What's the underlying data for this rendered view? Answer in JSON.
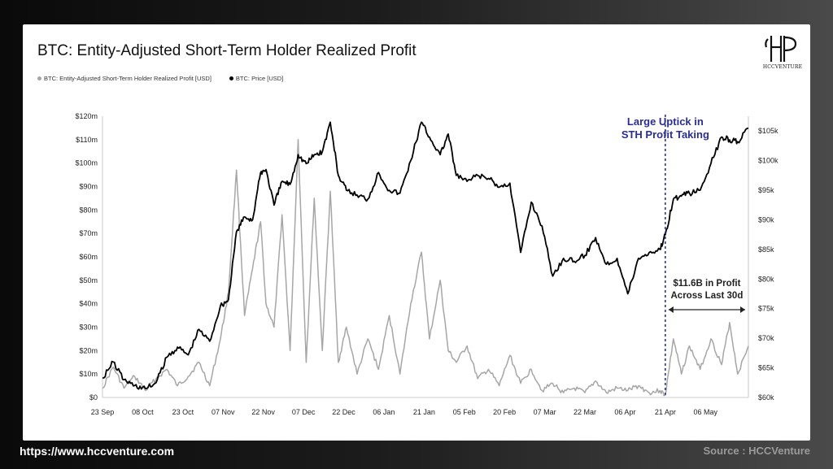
{
  "title": "BTC: Entity-Adjusted Short-Term Holder Realized Profit",
  "logo": {
    "word": "HCCVENTURE"
  },
  "footer": {
    "url": "https://www.hccventure.com",
    "source": "Source : HCCVenture"
  },
  "colors": {
    "profit_series": "#a6a6a6",
    "price_series": "#000000",
    "annotation_blue": "#2a2f8f",
    "vline": "#1f2a8a"
  },
  "chart_data": {
    "type": "line",
    "title": "BTC: Entity-Adjusted Short-Term Holder Realized Profit",
    "x_ticks": [
      "23 Sep",
      "08 Oct",
      "23 Oct",
      "07 Nov",
      "22 Nov",
      "07 Dec",
      "22 Dec",
      "06 Jan",
      "21 Jan",
      "05 Feb",
      "20 Feb",
      "07 Mar",
      "22 Mar",
      "06 Apr",
      "21 Apr",
      "06 May"
    ],
    "x_start": "2024-09-23",
    "x_end": "2025-05-22",
    "y_left": {
      "ticks": [
        "$0",
        "$10m",
        "$20m",
        "$30m",
        "$40m",
        "$50m",
        "$60m",
        "$70m",
        "$80m",
        "$90m",
        "$100m",
        "$110m",
        "$120m"
      ],
      "range": [
        0,
        120000000
      ]
    },
    "y_right": {
      "ticks": [
        "$60k",
        "$65k",
        "$70k",
        "$75k",
        "$80k",
        "$85k",
        "$90k",
        "$95k",
        "$100k",
        "$105k"
      ],
      "range": [
        60000,
        107500
      ]
    },
    "grid": false,
    "legend_position": "top-left",
    "series": [
      {
        "name": "BTC: Entity-Adjusted Short-Term Holder Realized Profit [USD]",
        "axis": "left",
        "points": [
          [
            "2024-09-23",
            4000000
          ],
          [
            "2024-09-27",
            13000000
          ],
          [
            "2024-10-01",
            4000000
          ],
          [
            "2024-10-05",
            9000000
          ],
          [
            "2024-10-09",
            3000000
          ],
          [
            "2024-10-13",
            8000000
          ],
          [
            "2024-10-17",
            12000000
          ],
          [
            "2024-10-21",
            5000000
          ],
          [
            "2024-10-25",
            9000000
          ],
          [
            "2024-10-29",
            15000000
          ],
          [
            "2024-11-02",
            5000000
          ],
          [
            "2024-11-06",
            25000000
          ],
          [
            "2024-11-09",
            45000000
          ],
          [
            "2024-11-12",
            97000000
          ],
          [
            "2024-11-15",
            35000000
          ],
          [
            "2024-11-18",
            55000000
          ],
          [
            "2024-11-21",
            75000000
          ],
          [
            "2024-11-23",
            40000000
          ],
          [
            "2024-11-26",
            30000000
          ],
          [
            "2024-11-29",
            78000000
          ],
          [
            "2024-12-02",
            20000000
          ],
          [
            "2024-12-05",
            110000000
          ],
          [
            "2024-12-08",
            15000000
          ],
          [
            "2024-12-11",
            85000000
          ],
          [
            "2024-12-14",
            20000000
          ],
          [
            "2024-12-17",
            88000000
          ],
          [
            "2024-12-20",
            15000000
          ],
          [
            "2024-12-23",
            30000000
          ],
          [
            "2024-12-27",
            10000000
          ],
          [
            "2024-12-31",
            25000000
          ],
          [
            "2025-01-04",
            12000000
          ],
          [
            "2025-01-08",
            35000000
          ],
          [
            "2025-01-12",
            10000000
          ],
          [
            "2025-01-16",
            40000000
          ],
          [
            "2025-01-20",
            62000000
          ],
          [
            "2025-01-23",
            25000000
          ],
          [
            "2025-01-27",
            50000000
          ],
          [
            "2025-01-30",
            20000000
          ],
          [
            "2025-02-02",
            15000000
          ],
          [
            "2025-02-06",
            22000000
          ],
          [
            "2025-02-10",
            8000000
          ],
          [
            "2025-02-14",
            12000000
          ],
          [
            "2025-02-18",
            5000000
          ],
          [
            "2025-02-22",
            18000000
          ],
          [
            "2025-02-26",
            6000000
          ],
          [
            "2025-03-02",
            12000000
          ],
          [
            "2025-03-06",
            3000000
          ],
          [
            "2025-03-10",
            6000000
          ],
          [
            "2025-03-14",
            2000000
          ],
          [
            "2025-03-18",
            4000000
          ],
          [
            "2025-03-22",
            2000000
          ],
          [
            "2025-03-26",
            7000000
          ],
          [
            "2025-03-30",
            2000000
          ],
          [
            "2025-04-03",
            4000000
          ],
          [
            "2025-04-07",
            3000000
          ],
          [
            "2025-04-11",
            5000000
          ],
          [
            "2025-04-15",
            2000000
          ],
          [
            "2025-04-19",
            3000000
          ],
          [
            "2025-04-21",
            1000000
          ],
          [
            "2025-04-24",
            25000000
          ],
          [
            "2025-04-27",
            10000000
          ],
          [
            "2025-04-30",
            22000000
          ],
          [
            "2025-05-04",
            12000000
          ],
          [
            "2025-05-08",
            25000000
          ],
          [
            "2025-05-12",
            14000000
          ],
          [
            "2025-05-15",
            32000000
          ],
          [
            "2025-05-18",
            10000000
          ],
          [
            "2025-05-22",
            22000000
          ]
        ]
      },
      {
        "name": "BTC: Price [USD]",
        "axis": "right",
        "points": [
          [
            "2024-09-23",
            63300
          ],
          [
            "2024-09-27",
            66000
          ],
          [
            "2024-10-01",
            63000
          ],
          [
            "2024-10-05",
            62000
          ],
          [
            "2024-10-09",
            61500
          ],
          [
            "2024-10-13",
            62500
          ],
          [
            "2024-10-17",
            66800
          ],
          [
            "2024-10-21",
            68500
          ],
          [
            "2024-10-25",
            67200
          ],
          [
            "2024-10-29",
            71500
          ],
          [
            "2024-11-02",
            69500
          ],
          [
            "2024-11-06",
            75500
          ],
          [
            "2024-11-09",
            76500
          ],
          [
            "2024-11-12",
            88000
          ],
          [
            "2024-11-15",
            90500
          ],
          [
            "2024-11-18",
            90000
          ],
          [
            "2024-11-21",
            98000
          ],
          [
            "2024-11-23",
            98500
          ],
          [
            "2024-11-26",
            92500
          ],
          [
            "2024-11-29",
            96500
          ],
          [
            "2024-12-02",
            96000
          ],
          [
            "2024-12-05",
            101000
          ],
          [
            "2024-12-08",
            99500
          ],
          [
            "2024-12-11",
            101000
          ],
          [
            "2024-12-14",
            101500
          ],
          [
            "2024-12-17",
            106500
          ],
          [
            "2024-12-20",
            97500
          ],
          [
            "2024-12-23",
            95000
          ],
          [
            "2024-12-27",
            94200
          ],
          [
            "2024-12-31",
            93500
          ],
          [
            "2025-01-04",
            98000
          ],
          [
            "2025-01-08",
            95000
          ],
          [
            "2025-01-12",
            94500
          ],
          [
            "2025-01-16",
            100000
          ],
          [
            "2025-01-20",
            106500
          ],
          [
            "2025-01-23",
            104000
          ],
          [
            "2025-01-27",
            101000
          ],
          [
            "2025-01-30",
            104500
          ],
          [
            "2025-02-02",
            97500
          ],
          [
            "2025-02-06",
            96500
          ],
          [
            "2025-02-10",
            97500
          ],
          [
            "2025-02-14",
            97000
          ],
          [
            "2025-02-18",
            95500
          ],
          [
            "2025-02-22",
            96200
          ],
          [
            "2025-02-26",
            84500
          ],
          [
            "2025-03-02",
            93000
          ],
          [
            "2025-03-06",
            89000
          ],
          [
            "2025-03-10",
            80500
          ],
          [
            "2025-03-14",
            83500
          ],
          [
            "2025-03-18",
            83000
          ],
          [
            "2025-03-22",
            84000
          ],
          [
            "2025-03-26",
            87000
          ],
          [
            "2025-03-30",
            82500
          ],
          [
            "2025-04-03",
            83500
          ],
          [
            "2025-04-07",
            77500
          ],
          [
            "2025-04-11",
            83500
          ],
          [
            "2025-04-15",
            84500
          ],
          [
            "2025-04-19",
            85000
          ],
          [
            "2025-04-21",
            87500
          ],
          [
            "2025-04-24",
            93500
          ],
          [
            "2025-04-27",
            94000
          ],
          [
            "2025-04-30",
            94500
          ],
          [
            "2025-05-04",
            95000
          ],
          [
            "2025-05-08",
            99500
          ],
          [
            "2025-05-12",
            104000
          ],
          [
            "2025-05-15",
            103500
          ],
          [
            "2025-05-18",
            103200
          ],
          [
            "2025-05-22",
            105500
          ]
        ]
      }
    ],
    "annotations": [
      {
        "text_lines": [
          "Large Uptick in",
          "STH Profit Taking"
        ],
        "style": "blue"
      },
      {
        "text_lines": [
          "$11.6B in Profit",
          "Across Last 30d"
        ],
        "style": "dark"
      }
    ],
    "vertical_line_date": "2025-04-21"
  }
}
